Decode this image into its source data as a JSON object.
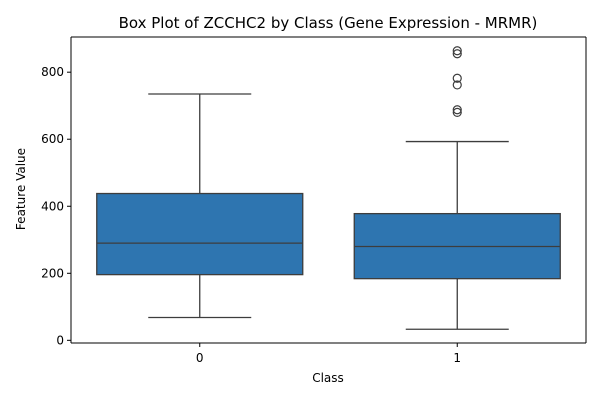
{
  "chart_data": {
    "type": "box",
    "title": "Box Plot of ZCCHC2 by Class (Gene Expression - MRMR)",
    "xlabel": "Class",
    "ylabel": "Feature Value",
    "categories": [
      "0",
      "1"
    ],
    "ylim": [
      -8,
      905
    ],
    "yticks": [
      0,
      200,
      400,
      600,
      800
    ],
    "box_color": "#2e75b0",
    "grid": false,
    "boxes": [
      {
        "category": "0",
        "whisker_low": 68,
        "q1": 196,
        "median": 290,
        "q3": 438,
        "whisker_high": 735,
        "outliers": []
      },
      {
        "category": "1",
        "whisker_low": 33,
        "q1": 184,
        "median": 280,
        "q3": 378,
        "whisker_high": 593,
        "outliers": [
          680,
          688,
          762,
          782,
          855,
          864
        ]
      }
    ]
  }
}
